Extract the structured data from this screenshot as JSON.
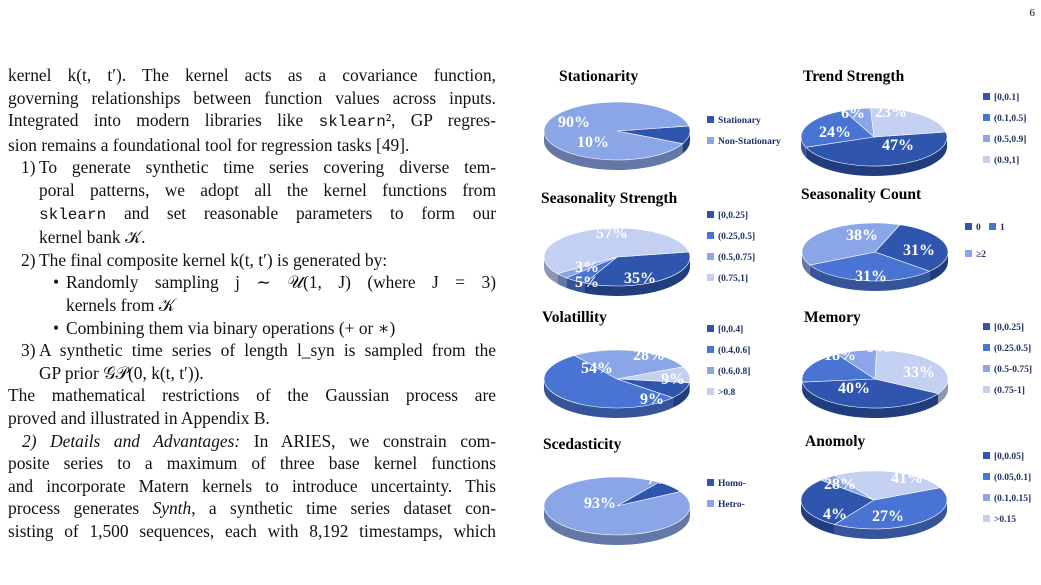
{
  "page_number": "6",
  "text": {
    "l1": "kernel k(t, t′). The kernel acts as a covariance function,",
    "l2": "governing relationships between function values across inputs.",
    "l3a": "Integrated into modern libraries like ",
    "l3b": "sklearn",
    "l3c": "², GP regres-",
    "l4": "sion remains a foundational tool for regression tasks [49].",
    "item1_num": "1)",
    "item1_l1": "To generate synthetic time series covering diverse tem-",
    "item1_l2": "poral patterns, we adopt all the kernel functions from",
    "item1_l3a": "sklearn",
    "item1_l3b": " and set reasonable parameters to form our",
    "item1_l4": "kernel bank 𝒦.",
    "item2_num": "2)",
    "item2_l1": "The final composite kernel k(t, t′) is generated by:",
    "bullet": "•",
    "sub1_l1": "Randomly sampling j ∼ 𝒰(1, J) (where J = 3)",
    "sub1_l2": "kernels from 𝒦",
    "sub2_l1": "Combining them via binary operations (+ or ∗)",
    "item3_num": "3)",
    "item3_l1": "A synthetic time series of length l_syn is sampled from the",
    "item3_l2": "GP prior 𝒢𝒫(0, k(t, t′)).",
    "p2_l1": "The mathematical restrictions of the Gaussian process are",
    "p2_l2": "proved and illustrated in Appendix B.",
    "p3_l1a": "2) Details and Advantages:",
    "p3_l1b": " In ARIES, we constrain com-",
    "p3_l2": "posite series to a maximum of three base kernel functions",
    "p3_l3": "and incorporate Matern kernels to introduce uncertainty. This",
    "p3_l4a": "process generates ",
    "p3_l4b": "Synth",
    "p3_l4c": ", a synthetic time series dataset con-",
    "p3_l5": "sisting of 1,500 sequences, each with 8,192 timestamps, which"
  },
  "colors": {
    "dark": "#2f55ae",
    "mid": "#4a74d4",
    "light1": "#8aa6e6",
    "light2": "#c4d0f2"
  },
  "chart_data": [
    {
      "type": "pie",
      "title": "Stationarity",
      "categories": [
        "Stationary",
        "Non-Stationary"
      ],
      "values": [
        10,
        90
      ],
      "labels": [
        "10%",
        "90%"
      ]
    },
    {
      "type": "pie",
      "title": "Trend Strength",
      "categories": [
        "[0,0.1]",
        "(0.1,0.5]",
        "(0.5,0.9]",
        "(0.9,1]"
      ],
      "values": [
        47,
        24,
        6,
        23
      ],
      "labels": [
        "47%",
        "24%",
        "6%",
        "23%"
      ]
    },
    {
      "type": "pie",
      "title": "Seasonality Strength",
      "categories": [
        "[0,0.25]",
        "(0.25,0.5]",
        "(0.5,0.75]",
        "(0.75,1]"
      ],
      "values": [
        35,
        5,
        3,
        57
      ],
      "labels": [
        "35%",
        "5%",
        "3%",
        "57%"
      ]
    },
    {
      "type": "pie",
      "title": "Seasonality Count",
      "categories": [
        "0",
        "1",
        "≥2"
      ],
      "values": [
        31,
        31,
        38
      ],
      "labels": [
        "31%",
        "31%",
        "38%"
      ]
    },
    {
      "type": "pie",
      "title": "Volatillity",
      "categories": [
        "[0,0.4]",
        "(0.4,0.6]",
        "(0.6,0.8]",
        ">0.8"
      ],
      "values": [
        54,
        28,
        9,
        9
      ],
      "labels": [
        "54%",
        "28%",
        "9%",
        "9%"
      ]
    },
    {
      "type": "pie",
      "title": "Memory",
      "categories": [
        "[0,0.25]",
        "(0.25.0.5]",
        "(0.5-0.75]",
        "(0.75-1]"
      ],
      "values": [
        40,
        18,
        9,
        33
      ],
      "labels": [
        "40%",
        "18%",
        "9%",
        "33%"
      ]
    },
    {
      "type": "pie",
      "title": "Scedasticity",
      "categories": [
        "Homo-",
        "Hetro-"
      ],
      "values": [
        7,
        93
      ],
      "labels": [
        "7%",
        "93%"
      ]
    },
    {
      "type": "pie",
      "title": "Anomoly",
      "categories": [
        "[0,0.05]",
        "(0.05,0.1]",
        "(0.1,0.15]",
        ">0.15"
      ],
      "values": [
        41,
        28,
        4,
        27
      ],
      "labels": [
        "41%",
        "28%",
        "4%",
        "27%"
      ]
    }
  ]
}
